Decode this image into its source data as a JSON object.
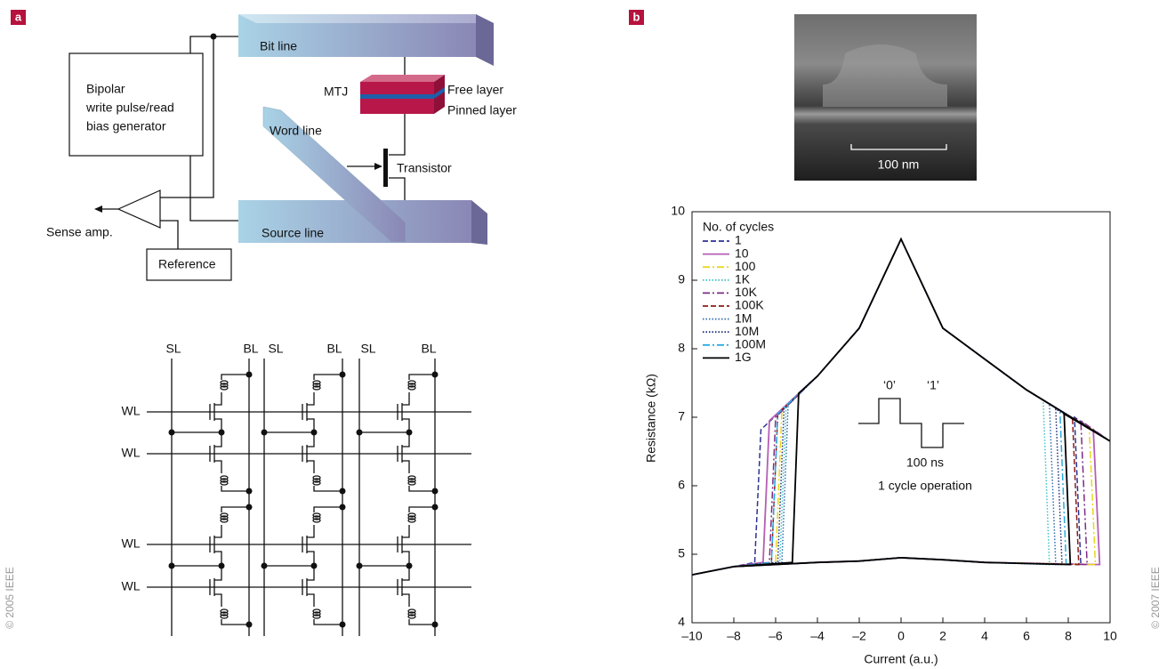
{
  "panel_a": {
    "label": "a",
    "copyright": "© 2005 IEEE",
    "bit_line": "Bit line",
    "mtj": "MTJ",
    "free_layer": "Free layer",
    "pinned_layer": "Pinned layer",
    "generator": [
      "Bipolar",
      "write pulse/read",
      "bias generator"
    ],
    "word_line": "Word line",
    "transistor": "Transistor",
    "sense_amp": "Sense amp.",
    "source_line": "Source line",
    "reference": "Reference",
    "array_columns": [
      "SL",
      "BL",
      "SL",
      "BL",
      "SL",
      "BL"
    ],
    "array_rows": [
      "WL",
      "WL",
      "WL",
      "WL"
    ]
  },
  "panel_b": {
    "label": "b",
    "scale_bar": "100 nm",
    "copyright": "© 2007 IEEE"
  },
  "chart_data": {
    "type": "line",
    "xlabel": "Current (a.u.)",
    "ylabel": "Resistance (kΩ)",
    "legend_title": "No. of cycles",
    "legend": "upper left",
    "annotations": [
      "‘0’",
      "‘1’",
      "100 ns",
      "1 cycle operation"
    ],
    "xlim": [
      -10,
      10
    ],
    "ylim": [
      4,
      10
    ],
    "xticks": [
      {
        "value": -10,
        "label": "–10"
      },
      {
        "value": -8,
        "label": "–8"
      },
      {
        "value": -6,
        "label": "–6"
      },
      {
        "value": -4,
        "label": "–4"
      },
      {
        "value": -2,
        "label": "–2"
      },
      0,
      2,
      4,
      6,
      8,
      10
    ],
    "yticks": [
      4,
      5,
      6,
      7,
      8,
      9,
      10
    ],
    "series": [
      {
        "name": "1",
        "color": "#2e3192",
        "style": "dashed",
        "x": [
          -10,
          -8,
          -7.0,
          -6.7,
          -4,
          -2,
          0,
          2,
          4,
          6,
          10,
          8.3,
          8.6,
          4,
          2,
          0,
          -2,
          -4,
          -8,
          -10
        ],
        "values": [
          4.7,
          4.82,
          4.88,
          6.82,
          7.6,
          8.3,
          9.6,
          8.3,
          7.85,
          7.4,
          6.65,
          7.0,
          4.85,
          4.88,
          4.92,
          4.95,
          4.9,
          4.88,
          4.82,
          4.7
        ]
      },
      {
        "name": "10",
        "color": "#b45fb4",
        "style": "solid",
        "x": [
          -10,
          -8,
          -6.6,
          -6.3,
          -4,
          -2,
          0,
          2,
          4,
          6,
          10,
          9.2,
          9.5,
          4,
          2,
          0,
          -2,
          -4,
          -8,
          -10
        ],
        "values": [
          4.7,
          4.82,
          4.88,
          6.95,
          7.6,
          8.3,
          9.6,
          8.3,
          7.85,
          7.4,
          6.65,
          6.8,
          4.85,
          4.88,
          4.92,
          4.95,
          4.9,
          4.88,
          4.82,
          4.7
        ]
      },
      {
        "name": "100",
        "color": "#e8d81c",
        "style": "dashdot",
        "x": [
          -10,
          -8,
          -6.0,
          -5.7,
          -4,
          -2,
          0,
          2,
          4,
          6,
          10,
          9.0,
          9.3,
          4,
          2,
          0,
          -2,
          -4,
          -8,
          -10
        ],
        "values": [
          4.7,
          4.82,
          4.88,
          7.1,
          7.6,
          8.3,
          9.6,
          8.3,
          7.85,
          7.4,
          6.65,
          6.85,
          4.85,
          4.88,
          4.92,
          4.95,
          4.9,
          4.88,
          4.82,
          4.7
        ]
      },
      {
        "name": "1K",
        "color": "#3cc4c4",
        "style": "dotted",
        "x": [
          -10,
          -8,
          -5.8,
          -5.5,
          -4,
          -2,
          0,
          2,
          4,
          6,
          10,
          6.8,
          7.1,
          4,
          2,
          0,
          -2,
          -4,
          -8,
          -10
        ],
        "values": [
          4.7,
          4.82,
          4.88,
          7.15,
          7.6,
          8.3,
          9.6,
          8.3,
          7.85,
          7.4,
          6.65,
          7.25,
          4.85,
          4.88,
          4.92,
          4.95,
          4.9,
          4.88,
          4.82,
          4.7
        ]
      },
      {
        "name": "10K",
        "color": "#7b2c83",
        "style": "dashdot",
        "x": [
          -10,
          -8,
          -6.3,
          -6.0,
          -4,
          -2,
          0,
          2,
          4,
          6,
          10,
          8.6,
          8.9,
          4,
          2,
          0,
          -2,
          -4,
          -8,
          -10
        ],
        "values": [
          4.7,
          4.82,
          4.88,
          7.0,
          7.6,
          8.3,
          9.6,
          8.3,
          7.85,
          7.4,
          6.65,
          6.95,
          4.85,
          4.88,
          4.92,
          4.95,
          4.9,
          4.88,
          4.82,
          4.7
        ]
      },
      {
        "name": "100K",
        "color": "#8c1c1c",
        "style": "dashed",
        "x": [
          -10,
          -8,
          -6.2,
          -5.9,
          -4,
          -2,
          0,
          2,
          4,
          6,
          10,
          8.2,
          8.5,
          4,
          2,
          0,
          -2,
          -4,
          -8,
          -10
        ],
        "values": [
          4.7,
          4.82,
          4.88,
          7.05,
          7.6,
          8.3,
          9.6,
          8.3,
          7.85,
          7.4,
          6.65,
          7.0,
          4.85,
          4.88,
          4.92,
          4.95,
          4.9,
          4.88,
          4.82,
          4.7
        ]
      },
      {
        "name": "1M",
        "color": "#2f6db5",
        "style": "dotted",
        "x": [
          -10,
          -8,
          -5.7,
          -5.4,
          -4,
          -2,
          0,
          2,
          4,
          6,
          10,
          7.1,
          7.4,
          4,
          2,
          0,
          -2,
          -4,
          -8,
          -10
        ],
        "values": [
          4.7,
          4.82,
          4.88,
          7.2,
          7.6,
          8.3,
          9.6,
          8.3,
          7.85,
          7.4,
          6.65,
          7.2,
          4.85,
          4.88,
          4.92,
          4.95,
          4.9,
          4.88,
          4.82,
          4.7
        ]
      },
      {
        "name": "10M",
        "color": "#1f2e7a",
        "style": "dotted",
        "x": [
          -10,
          -8,
          -5.9,
          -5.6,
          -4,
          -2,
          0,
          2,
          4,
          6,
          10,
          7.4,
          7.7,
          4,
          2,
          0,
          -2,
          -4,
          -8,
          -10
        ],
        "values": [
          4.7,
          4.82,
          4.88,
          7.12,
          7.6,
          8.3,
          9.6,
          8.3,
          7.85,
          7.4,
          6.65,
          7.12,
          4.85,
          4.88,
          4.92,
          4.95,
          4.9,
          4.88,
          4.82,
          4.7
        ]
      },
      {
        "name": "100M",
        "color": "#29abe2",
        "style": "dashdot",
        "x": [
          -10,
          -8,
          -6.2,
          -5.9,
          -4,
          -2,
          0,
          2,
          4,
          6,
          10,
          7.6,
          7.9,
          4,
          2,
          0,
          -2,
          -4,
          -8,
          -10
        ],
        "values": [
          4.7,
          4.82,
          4.88,
          7.05,
          7.6,
          8.3,
          9.6,
          8.3,
          7.85,
          7.4,
          6.65,
          7.1,
          4.85,
          4.88,
          4.92,
          4.95,
          4.9,
          4.88,
          4.82,
          4.7
        ]
      },
      {
        "name": "1G",
        "color": "#000000",
        "style": "solid",
        "x": [
          -10,
          -8,
          -5.2,
          -4.9,
          -4,
          -2,
          0,
          2,
          4,
          6,
          10,
          7.8,
          8.1,
          4,
          2,
          0,
          -2,
          -4,
          -8,
          -10
        ],
        "values": [
          4.7,
          4.82,
          4.88,
          7.35,
          7.6,
          8.3,
          9.6,
          8.3,
          7.85,
          7.4,
          6.65,
          7.05,
          4.85,
          4.88,
          4.92,
          4.95,
          4.9,
          4.88,
          4.82,
          4.7
        ]
      }
    ]
  }
}
